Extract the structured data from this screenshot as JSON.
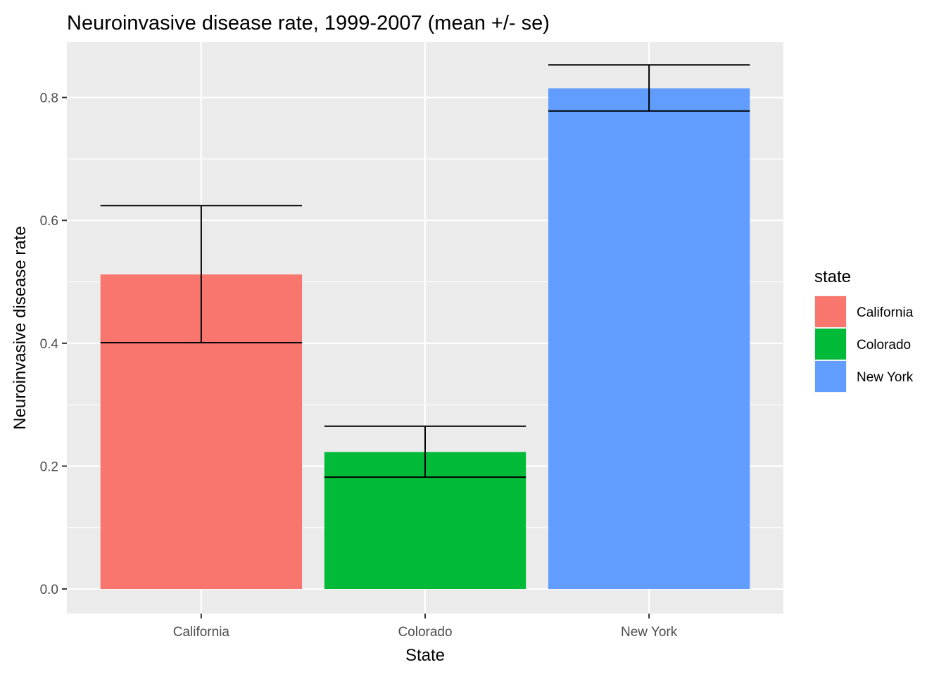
{
  "chart_data": {
    "type": "bar",
    "title": "Neuroinvasive disease rate, 1999-2007 (mean +/- se)",
    "xlabel": "State",
    "ylabel": "Neuroinvasive disease rate",
    "categories": [
      "California",
      "Colorado",
      "New York"
    ],
    "values": [
      0.512,
      0.223,
      0.815
    ],
    "error_low": [
      0.401,
      0.182,
      0.778
    ],
    "error_high": [
      0.624,
      0.265,
      0.853
    ],
    "ylim": [
      -0.04,
      0.89
    ],
    "yticks": [
      0.0,
      0.2,
      0.4,
      0.6,
      0.8
    ],
    "ytick_labels": [
      "0.0",
      "0.2",
      "0.4",
      "0.6",
      "0.8"
    ],
    "grid": true,
    "legend": {
      "title": "state",
      "position": "right",
      "entries": [
        "California",
        "Colorado",
        "New York"
      ]
    },
    "colors": [
      "#F8766D",
      "#00BA38",
      "#619CFF"
    ],
    "panel_background": "#EBEBEB",
    "gridline_color": "#FFFFFF",
    "errorbar_color": "#000000"
  }
}
